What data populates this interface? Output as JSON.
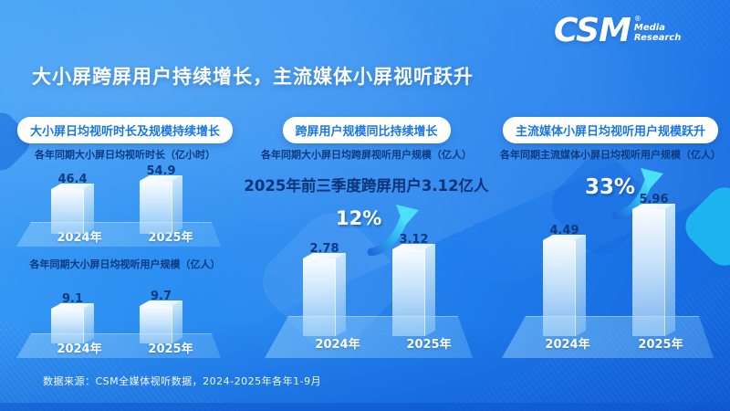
{
  "brand": {
    "name": "CSM",
    "registered": "®",
    "tagline_line1": "Media",
    "tagline_line2": "Research"
  },
  "header": {
    "title": "大小屏跨屏用户持续增长，主流媒体小屏视听跃升"
  },
  "panels": [
    {
      "pill": "大小屏日均视听时长及规模持续增长"
    },
    {
      "pill": "跨屏用户规模同比持续增长"
    },
    {
      "pill": "主流媒体小屏日均视听用户规模跃升"
    }
  ],
  "footer": {
    "source": "数据来源：CSM全媒体视听数据，2024-2025年各年1-9月"
  },
  "colors": {
    "background_blue": "#2d8ff2",
    "deep_blue": "#1263d8",
    "pill_text_blue": "#1877e8",
    "navy_text": "#0d3a80",
    "arrow_cyan": "#46e0fa",
    "platform_blue": "#66b3f2",
    "cyan_blob": "#1fbdf2"
  },
  "chart_data": [
    {
      "type": "bar",
      "title": "各年同期大小屏日均视听时长（亿小时）",
      "unit": "亿小时",
      "categories": [
        "2024年",
        "2025年"
      ],
      "values": [
        46.4,
        54.9
      ],
      "legend_position": "none",
      "grid": false
    },
    {
      "type": "bar",
      "title": "各年同期大小屏日均视听用户规模（亿人）",
      "unit": "亿人",
      "categories": [
        "2024年",
        "2025年"
      ],
      "values": [
        9.1,
        9.7
      ],
      "legend_position": "none",
      "grid": false
    },
    {
      "type": "bar",
      "title": "各年同期大小屏日均跨屏视听用户规模（亿人）",
      "unit": "亿人",
      "categories": [
        "2024年",
        "2025年"
      ],
      "values": [
        2.78,
        3.12
      ],
      "growth_label": "12%",
      "callout": "2025年前三季度跨屏用户3.12亿人",
      "legend_position": "none",
      "grid": false
    },
    {
      "type": "bar",
      "title": "各年同期主流媒体小屏日均视听用户规模（亿人）",
      "unit": "亿人",
      "categories": [
        "2024年",
        "2025年"
      ],
      "values": [
        4.49,
        5.96
      ],
      "growth_label": "33%",
      "legend_position": "none",
      "grid": false
    }
  ]
}
